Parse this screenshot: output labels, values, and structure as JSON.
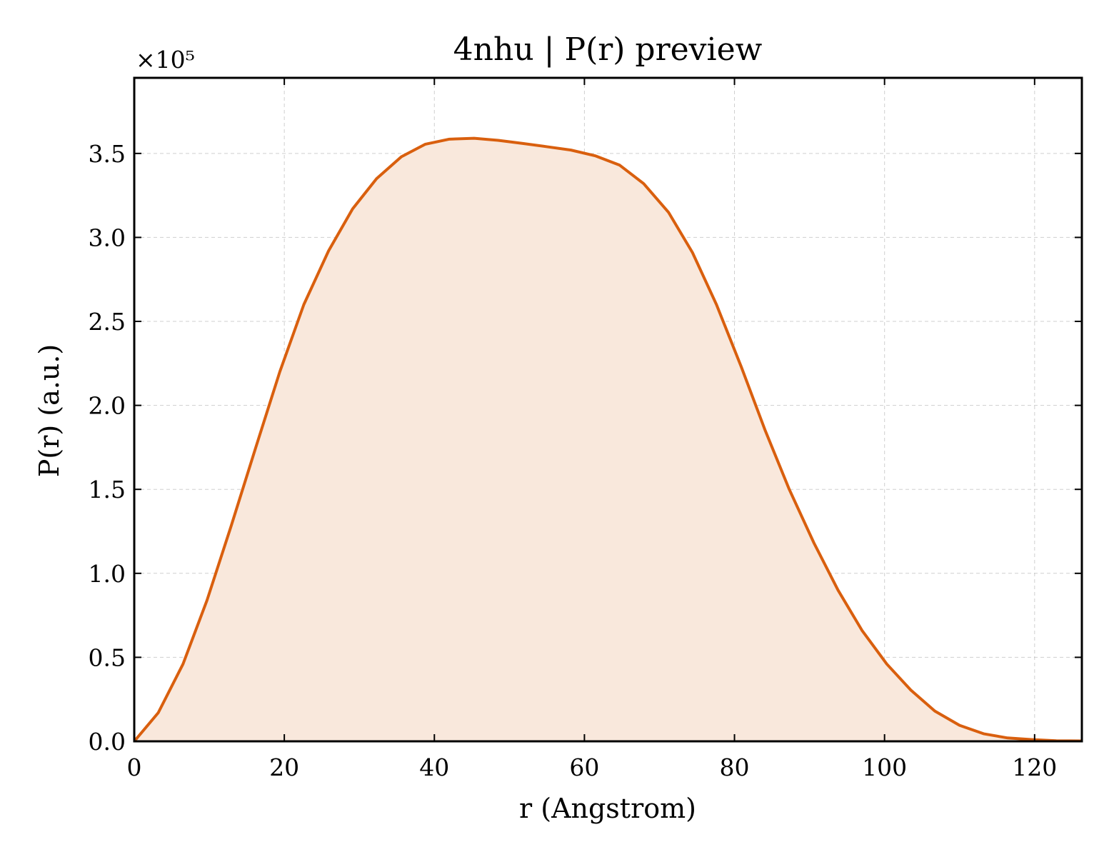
{
  "chart_data": {
    "type": "area",
    "title": "4nhu | P(r) preview",
    "xlabel": "r (Angstrom)",
    "ylabel": "P(r) (a.u.)",
    "y_exponent_label": "×10⁵",
    "y_scale_factor": 100000,
    "xlim": [
      0,
      126.3
    ],
    "ylim": [
      0,
      3.95
    ],
    "xticks": [
      0,
      20,
      40,
      60,
      80,
      100,
      120
    ],
    "yticks": [
      0.0,
      0.5,
      1.0,
      1.5,
      2.0,
      2.5,
      3.0,
      3.5
    ],
    "grid": true,
    "colors": {
      "line": "#d95f0e",
      "fill": "#f9e8dc"
    },
    "series": [
      {
        "x": [
          0,
          3.2,
          6.5,
          9.7,
          12.9,
          16.2,
          19.4,
          22.6,
          25.9,
          29.1,
          32.3,
          35.6,
          38.8,
          42.0,
          45.3,
          48.5,
          51.7,
          55.0,
          58.2,
          61.5,
          64.7,
          67.9,
          71.2,
          74.4,
          77.6,
          80.9,
          84.1,
          87.3,
          90.6,
          93.8,
          97.0,
          100.3,
          103.5,
          106.7,
          110.0,
          113.2,
          116.4,
          119.7,
          122.9,
          126.3
        ],
        "y": [
          0.0,
          0.17,
          0.46,
          0.84,
          1.28,
          1.75,
          2.2,
          2.6,
          2.92,
          3.17,
          3.35,
          3.48,
          3.555,
          3.585,
          3.59,
          3.578,
          3.56,
          3.54,
          3.52,
          3.485,
          3.43,
          3.32,
          3.15,
          2.91,
          2.6,
          2.23,
          1.85,
          1.5,
          1.18,
          0.9,
          0.66,
          0.46,
          0.305,
          0.18,
          0.095,
          0.045,
          0.02,
          0.01,
          0.003,
          0.002
        ]
      }
    ]
  }
}
